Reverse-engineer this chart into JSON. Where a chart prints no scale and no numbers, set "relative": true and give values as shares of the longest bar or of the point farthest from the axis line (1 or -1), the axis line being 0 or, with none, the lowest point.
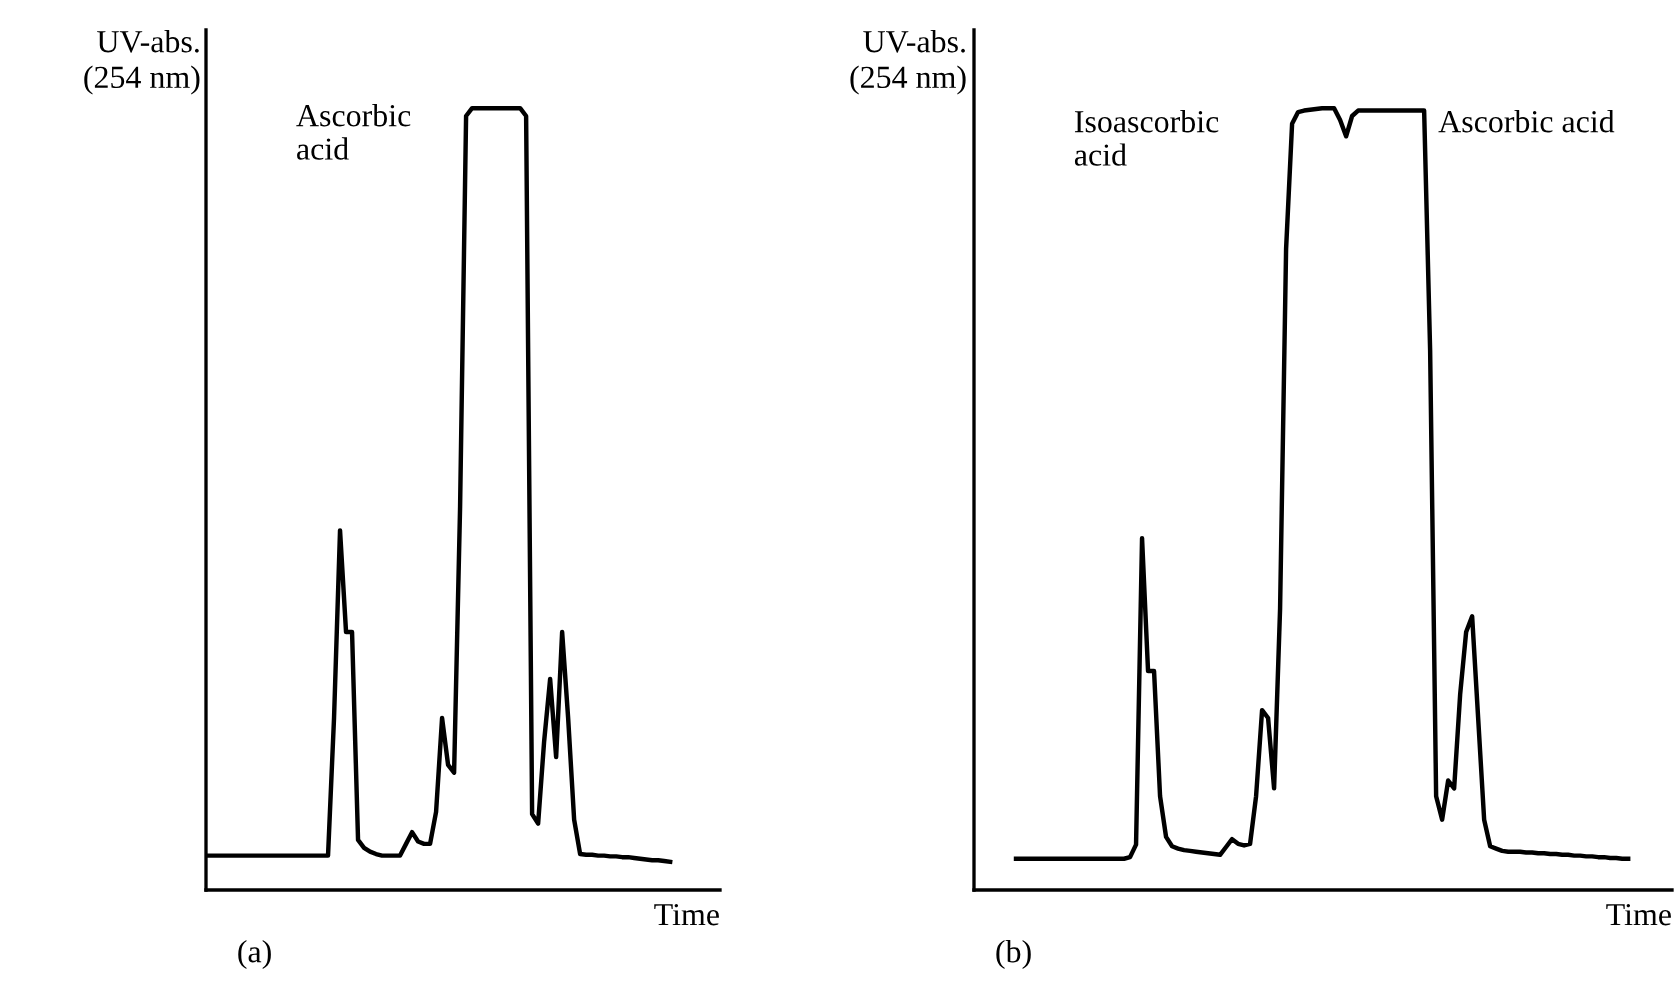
{
  "chart_data": [
    {
      "type": "line",
      "relative": true,
      "ylabel": "UV-abs.\n(254 nm)",
      "xlabel": "Time",
      "annotations": [
        "Ascorbic\nacid",
        "(a)"
      ],
      "color": "#000000",
      "categories": [
        null,
        null,
        null,
        null,
        null,
        null,
        null,
        null,
        null,
        null,
        null,
        null,
        null,
        null,
        null,
        null,
        null,
        null,
        null,
        null,
        null,
        null,
        null,
        null,
        null,
        null,
        null,
        null,
        null,
        null,
        null,
        null,
        null,
        null,
        null,
        null,
        null,
        null,
        null,
        null,
        null,
        null,
        null,
        null,
        null,
        null,
        null,
        null,
        null,
        null,
        null,
        null,
        null,
        null,
        null,
        null,
        null,
        null,
        null,
        null,
        null,
        null,
        null,
        null,
        null,
        null,
        null,
        null,
        null,
        null,
        null,
        null,
        null,
        null,
        null,
        null,
        null,
        null
      ],
      "values": [
        0.044,
        0.044,
        0.044,
        0.044,
        0.044,
        0.044,
        0.044,
        0.044,
        0.044,
        0.044,
        0.044,
        0.044,
        0.044,
        0.044,
        0.044,
        0.044,
        0.044,
        0.044,
        0.044,
        0.044,
        0.044,
        0.22,
        0.46,
        0.33,
        0.33,
        0.064,
        0.054,
        0.049,
        0.046,
        0.044,
        0.044,
        0.044,
        0.044,
        0.059,
        0.074,
        0.062,
        0.059,
        0.059,
        0.1,
        0.22,
        0.16,
        0.15,
        0.49,
        0.99,
        1,
        1,
        1,
        1,
        1,
        1,
        1,
        1,
        1,
        0.99,
        0.097,
        0.085,
        0.19,
        0.27,
        0.17,
        0.33,
        0.22,
        0.09,
        0.046,
        0.045,
        0.045,
        0.044,
        0.044,
        0.043,
        0.043,
        0.042,
        0.042,
        0.041,
        0.04,
        0.039,
        0.038,
        0.038,
        0.037,
        0.036
      ]
    },
    {
      "type": "line",
      "relative": true,
      "ylabel": "UV-abs.\n(254 nm)",
      "xlabel": "Time",
      "annotations": [
        "Isoascorbic\nacid",
        "Ascorbic acid",
        "(b)"
      ],
      "color": "#000000",
      "categories": [
        null,
        null,
        null,
        null,
        null,
        null,
        null,
        null,
        null,
        null,
        null,
        null,
        null,
        null,
        null,
        null,
        null,
        null,
        null,
        null,
        null,
        null,
        null,
        null,
        null,
        null,
        null,
        null,
        null,
        null,
        null,
        null,
        null,
        null,
        null,
        null,
        null,
        null,
        null,
        null,
        null,
        null,
        null,
        null,
        null,
        null,
        null,
        null,
        null,
        null,
        null,
        null,
        null,
        null,
        null,
        null,
        null,
        null,
        null,
        null,
        null,
        null,
        null,
        null,
        null,
        null,
        null,
        null,
        null,
        null,
        null,
        null,
        null,
        null,
        null,
        null,
        null,
        null,
        null,
        null,
        null,
        null,
        null,
        null,
        null,
        null,
        null,
        null,
        null,
        null,
        null,
        null,
        null,
        null,
        null,
        null,
        null,
        null,
        null,
        null,
        null,
        null,
        null
      ],
      "values": [
        0.04,
        0.04,
        0.04,
        0.04,
        0.04,
        0.04,
        0.04,
        0.04,
        0.04,
        0.04,
        0.04,
        0.04,
        0.04,
        0.04,
        0.04,
        0.04,
        0.04,
        0.04,
        0.04,
        0.042,
        0.058,
        0.45,
        0.28,
        0.28,
        0.12,
        0.068,
        0.056,
        0.053,
        0.051,
        0.05,
        0.049,
        0.048,
        0.047,
        0.046,
        0.045,
        0.055,
        0.065,
        0.059,
        0.057,
        0.059,
        0.12,
        0.23,
        0.22,
        0.13,
        0.36,
        0.82,
        0.98,
        0.995,
        0.997,
        0.998,
        0.999,
        1,
        1,
        1,
        0.985,
        0.964,
        0.99,
        0.997,
        0.997,
        0.997,
        0.997,
        0.997,
        0.997,
        0.997,
        0.997,
        0.997,
        0.997,
        0.997,
        0.997,
        0.69,
        0.12,
        0.09,
        0.14,
        0.13,
        0.25,
        0.33,
        0.35,
        0.22,
        0.09,
        0.056,
        0.053,
        0.05,
        0.049,
        0.049,
        0.049,
        0.048,
        0.048,
        0.047,
        0.047,
        0.046,
        0.046,
        0.045,
        0.045,
        0.044,
        0.044,
        0.043,
        0.043,
        0.042,
        0.042,
        0.041,
        0.041,
        0.04,
        0.04
      ]
    }
  ]
}
